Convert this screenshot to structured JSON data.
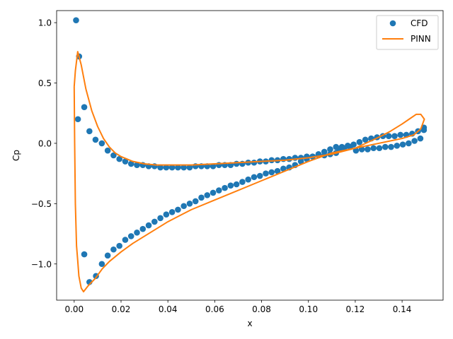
{
  "chart_data": {
    "type": "scatter",
    "title": "",
    "xlabel": "x",
    "ylabel": "Cp",
    "xlim": [
      -0.0075,
      0.1575
    ],
    "ylim": [
      -1.3,
      1.1
    ],
    "xticks": [
      0.0,
      0.02,
      0.04,
      0.06,
      0.08,
      0.1,
      0.12,
      0.14
    ],
    "xtick_labels": [
      "0.00",
      "0.02",
      "0.04",
      "0.06",
      "0.08",
      "0.10",
      "0.12",
      "0.14"
    ],
    "yticks": [
      -1.0,
      -0.5,
      0.0,
      0.5,
      1.0
    ],
    "ytick_labels": [
      "−1.0",
      "−0.5",
      "0.0",
      "0.5",
      "1.0"
    ],
    "grid": false,
    "legend_position": "top-right",
    "series": [
      {
        "name": "CFD",
        "kind": "scatter",
        "color": "#1f77b4",
        "x": [
          0.0008,
          0.0016,
          0.0043,
          0.0065,
          0.0091,
          0.0118,
          0.0143,
          0.0168,
          0.0193,
          0.0218,
          0.0243,
          0.0268,
          0.0293,
          0.0318,
          0.0343,
          0.0368,
          0.0393,
          0.0418,
          0.0443,
          0.0468,
          0.0493,
          0.0518,
          0.0543,
          0.0568,
          0.0593,
          0.0618,
          0.0643,
          0.0668,
          0.0693,
          0.0718,
          0.0743,
          0.0768,
          0.0793,
          0.0818,
          0.0843,
          0.0868,
          0.0893,
          0.0918,
          0.0943,
          0.0968,
          0.0993,
          0.1018,
          0.1043,
          0.1068,
          0.1093,
          0.1118,
          0.1133,
          0.1153,
          0.1178,
          0.1203,
          0.1228,
          0.1253,
          0.1278,
          0.1303,
          0.1328,
          0.1353,
          0.1378,
          0.1403,
          0.1428,
          0.1453,
          0.1478,
          0.1493,
          0.0021,
          0.0043,
          0.0065,
          0.0093,
          0.0118,
          0.0143,
          0.0168,
          0.0193,
          0.0218,
          0.0243,
          0.0268,
          0.0293,
          0.0318,
          0.0343,
          0.0368,
          0.0393,
          0.0418,
          0.0443,
          0.0468,
          0.0493,
          0.0518,
          0.0543,
          0.0568,
          0.0593,
          0.0618,
          0.0643,
          0.0668,
          0.0693,
          0.0718,
          0.0743,
          0.0768,
          0.0793,
          0.0818,
          0.0843,
          0.0868,
          0.0893,
          0.0918,
          0.0943,
          0.0968,
          0.0993,
          0.1018,
          0.1043,
          0.1068,
          0.1093,
          0.1118,
          0.1143,
          0.1168,
          0.1193,
          0.1218,
          0.1243,
          0.1268,
          0.1293,
          0.1318,
          0.1343,
          0.1368,
          0.1393,
          0.1418,
          0.1443,
          0.1468,
          0.1493
        ],
        "y": [
          1.02,
          0.2,
          0.3,
          0.1,
          0.03,
          0.0,
          -0.06,
          -0.1,
          -0.13,
          -0.15,
          -0.17,
          -0.18,
          -0.18,
          -0.19,
          -0.19,
          -0.2,
          -0.2,
          -0.2,
          -0.2,
          -0.2,
          -0.2,
          -0.19,
          -0.19,
          -0.19,
          -0.19,
          -0.18,
          -0.18,
          -0.18,
          -0.17,
          -0.17,
          -0.16,
          -0.16,
          -0.15,
          -0.15,
          -0.14,
          -0.14,
          -0.13,
          -0.13,
          -0.12,
          -0.12,
          -0.11,
          -0.11,
          -0.1,
          -0.1,
          -0.09,
          -0.08,
          -0.05,
          -0.04,
          -0.03,
          -0.06,
          -0.05,
          -0.05,
          -0.04,
          -0.04,
          -0.03,
          -0.03,
          -0.02,
          -0.01,
          0.0,
          0.02,
          0.04,
          0.11,
          0.72,
          -0.92,
          -1.15,
          -1.1,
          -1.0,
          -0.93,
          -0.88,
          -0.85,
          -0.8,
          -0.77,
          -0.74,
          -0.71,
          -0.68,
          -0.65,
          -0.62,
          -0.59,
          -0.57,
          -0.55,
          -0.52,
          -0.5,
          -0.48,
          -0.45,
          -0.43,
          -0.41,
          -0.39,
          -0.37,
          -0.35,
          -0.34,
          -0.32,
          -0.3,
          -0.28,
          -0.27,
          -0.25,
          -0.24,
          -0.23,
          -0.21,
          -0.2,
          -0.18,
          -0.15,
          -0.13,
          -0.11,
          -0.09,
          -0.07,
          -0.05,
          -0.03,
          -0.03,
          -0.02,
          -0.01,
          0.01,
          0.03,
          0.04,
          0.05,
          0.06,
          0.06,
          0.06,
          0.07,
          0.07,
          0.08,
          0.1,
          0.13
        ]
      },
      {
        "name": "PINN",
        "kind": "line",
        "color": "#ff7f0e",
        "x": [
          0.0,
          0.0005,
          0.0015,
          0.003,
          0.005,
          0.0075,
          0.01,
          0.0125,
          0.015,
          0.0175,
          0.02,
          0.025,
          0.03,
          0.035,
          0.04,
          0.045,
          0.05,
          0.06,
          0.07,
          0.08,
          0.09,
          0.1,
          0.11,
          0.12,
          0.13,
          0.135,
          0.14,
          0.143,
          0.146,
          0.148,
          0.1495,
          0.148,
          0.145,
          0.14,
          0.135,
          0.13,
          0.12,
          0.11,
          0.1,
          0.09,
          0.08,
          0.07,
          0.06,
          0.05,
          0.045,
          0.04,
          0.035,
          0.03,
          0.025,
          0.02,
          0.015,
          0.012,
          0.009,
          0.006,
          0.004,
          0.003,
          0.002,
          0.0015,
          0.001,
          0.0005,
          0.0002,
          0.0
        ],
        "y": [
          0.47,
          0.6,
          0.76,
          0.65,
          0.45,
          0.27,
          0.14,
          0.04,
          -0.03,
          -0.08,
          -0.11,
          -0.15,
          -0.17,
          -0.18,
          -0.18,
          -0.18,
          -0.18,
          -0.17,
          -0.16,
          -0.15,
          -0.14,
          -0.12,
          -0.09,
          -0.04,
          0.05,
          0.1,
          0.16,
          0.2,
          0.24,
          0.24,
          0.2,
          0.12,
          0.07,
          0.04,
          0.02,
          0.0,
          -0.04,
          -0.08,
          -0.15,
          -0.23,
          -0.31,
          -0.39,
          -0.47,
          -0.55,
          -0.6,
          -0.65,
          -0.71,
          -0.77,
          -0.83,
          -0.9,
          -0.98,
          -1.04,
          -1.12,
          -1.18,
          -1.23,
          -1.2,
          -1.1,
          -0.97,
          -0.85,
          -0.5,
          0.0,
          0.47
        ]
      }
    ]
  }
}
